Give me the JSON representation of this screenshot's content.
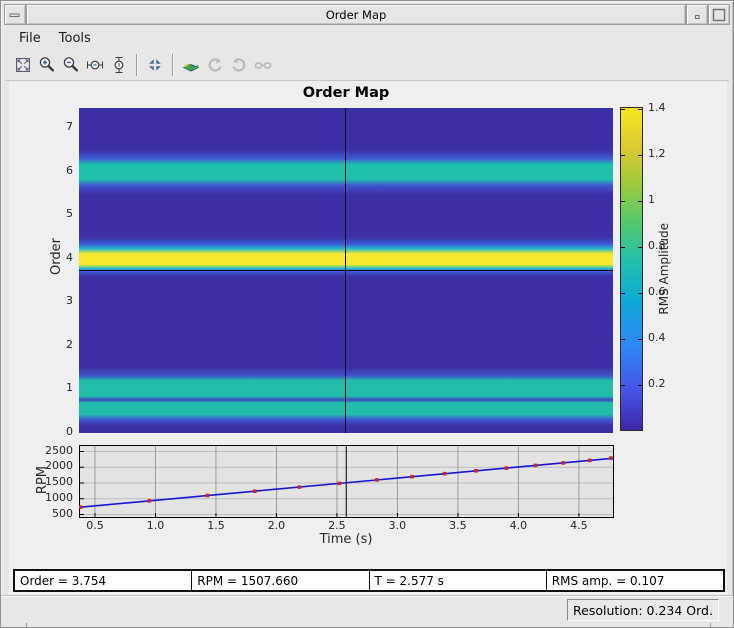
{
  "window": {
    "title": "Order Map",
    "controls": [
      "window-menu",
      "minimize",
      "maximize"
    ]
  },
  "menubar": {
    "file": "File",
    "tools": "Tools"
  },
  "toolbar": {
    "icons": [
      {
        "name": "zoom-full-view",
        "enabled": true
      },
      {
        "name": "zoom-in",
        "enabled": true
      },
      {
        "name": "zoom-out",
        "enabled": true
      },
      {
        "name": "zoom-x",
        "enabled": true
      },
      {
        "name": "zoom-y",
        "enabled": true
      },
      {
        "name": "fit-to-view",
        "enabled": true
      },
      {
        "name": "surface-view",
        "enabled": true
      },
      {
        "name": "rotate-counterclockwise",
        "enabled": false
      },
      {
        "name": "rotate-clockwise",
        "enabled": false
      },
      {
        "name": "pan-3d-glasses",
        "enabled": false
      }
    ]
  },
  "chart_data": [
    {
      "type": "heatmap",
      "title": "Order Map",
      "ylabel": "Order",
      "xlim": [
        0.368,
        4.79
      ],
      "ylim": [
        0,
        7.47
      ],
      "ytick_labels": [
        "0",
        "1",
        "2",
        "3",
        "4",
        "5",
        "6",
        "7"
      ],
      "yticks": [
        0,
        1,
        2,
        3,
        4,
        5,
        6,
        7
      ],
      "background_color": "#3d2fa5",
      "bands": [
        {
          "order_center": 6.0,
          "order_range": [
            5.7,
            6.3
          ],
          "peak_rms": 0.72
        },
        {
          "order_center": 4.0,
          "order_range": [
            3.75,
            4.25
          ],
          "peak_rms": 1.41
        },
        {
          "order_center": 1.0,
          "order_range": [
            0.8,
            1.25
          ],
          "peak_rms": 0.72
        },
        {
          "order_center": 0.55,
          "order_range": [
            0.4,
            0.7
          ],
          "peak_rms": 0.72
        }
      ],
      "gradient_stops": [
        [
          7.47,
          "#3d2fa5"
        ],
        [
          6.52,
          "#3d2fa5"
        ],
        [
          6.31,
          "#3f58d2"
        ],
        [
          6.17,
          "#1fc0ae"
        ],
        [
          5.83,
          "#1fc0ae"
        ],
        [
          5.69,
          "#3f58d2"
        ],
        [
          5.48,
          "#3d2fa5"
        ],
        [
          4.52,
          "#3d2fa5"
        ],
        [
          4.34,
          "#3b59d6"
        ],
        [
          4.24,
          "#22b8d0"
        ],
        [
          4.12,
          "#f4ea2f"
        ],
        [
          3.87,
          "#f9e72a"
        ],
        [
          3.79,
          "#27c3c3"
        ],
        [
          3.71,
          "#3b59d6"
        ],
        [
          3.6,
          "#3d2fa5"
        ],
        [
          1.5,
          "#3d2fa5"
        ],
        [
          1.31,
          "#4056cf"
        ],
        [
          1.21,
          "#21bcaa"
        ],
        [
          0.85,
          "#21bcaa"
        ],
        [
          0.76,
          "#3a49bd"
        ],
        [
          0.69,
          "#21bcaa"
        ],
        [
          0.43,
          "#21bcaa"
        ],
        [
          0.31,
          "#3f58d2"
        ],
        [
          0.16,
          "#3d2fa5"
        ],
        [
          0.0,
          "#3d2fa5"
        ]
      ],
      "cursor": {
        "time_s": 2.577,
        "order": 3.754,
        "rms": 0.107
      },
      "colorbar": {
        "label": "RMS Amplitude",
        "colormap": "parula",
        "range": [
          0,
          1.41
        ],
        "ticks": [
          0.2,
          0.4,
          0.6,
          0.8,
          1,
          1.2,
          1.4
        ],
        "tick_labels": [
          "0.2",
          "0.4",
          "0.6",
          "0.8",
          "1",
          "1.2",
          "1.4"
        ],
        "gradient": [
          [
            0.0,
            "#3e26a8"
          ],
          [
            0.12,
            "#4454e8"
          ],
          [
            0.26,
            "#2e87f7"
          ],
          [
            0.4,
            "#0fa8d9"
          ],
          [
            0.52,
            "#1fc0ad"
          ],
          [
            0.64,
            "#52c96f"
          ],
          [
            0.76,
            "#9bca3c"
          ],
          [
            0.87,
            "#d9c832"
          ],
          [
            1.0,
            "#f8e621"
          ]
        ]
      }
    },
    {
      "type": "line",
      "xlabel": "Time (s)",
      "ylabel": "RPM",
      "xlim": [
        0.368,
        4.79
      ],
      "xticks": [
        0.5,
        1.0,
        1.5,
        2.0,
        2.5,
        3.0,
        3.5,
        4.0,
        4.5
      ],
      "xtick_labels": [
        "0.5",
        "1.0",
        "1.5",
        "2.0",
        "2.5",
        "3.0",
        "3.5",
        "4.0",
        "4.5"
      ],
      "yticks": [
        500,
        1000,
        1500,
        2000,
        2500
      ],
      "ytick_labels": [
        "500",
        "1000",
        "1500",
        "2000",
        "2500"
      ],
      "grid": true,
      "line_color": "#1515dd",
      "marker_color": "#c62828",
      "series": [
        {
          "name": "rpm-profile",
          "x": [
            0.368,
            4.79
          ],
          "y": [
            730,
            2287
          ]
        }
      ],
      "markers": {
        "x": [
          0.38,
          0.95,
          1.43,
          1.82,
          2.19,
          2.52,
          2.83,
          3.12,
          3.39,
          3.65,
          3.9,
          4.14,
          4.37,
          4.59,
          4.8
        ],
        "y": [
          734,
          935,
          1104,
          1241,
          1371,
          1488,
          1597,
          1699,
          1794,
          1886,
          1974,
          2058,
          2139,
          2217,
          2291
        ]
      },
      "cursor": {
        "time_s": 2.577
      }
    }
  ],
  "status": {
    "cells": [
      "Order = 3.754",
      "RPM = 1507.660",
      "T = 2.577 s",
      "RMS amp. = 0.107"
    ]
  },
  "statusbar": {
    "resolution": "Resolution: 0.234 Ord."
  }
}
